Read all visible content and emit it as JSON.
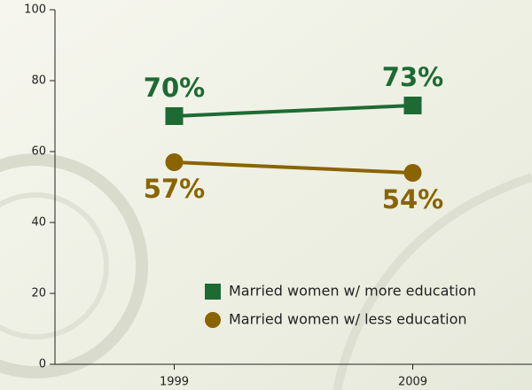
{
  "chart_data": {
    "type": "line",
    "x": [
      1999,
      2009
    ],
    "xlim": [
      1994,
      2014
    ],
    "xticks": [
      1999,
      2009
    ],
    "ylim": [
      0,
      100
    ],
    "yticks": [
      0,
      20,
      40,
      60,
      80,
      100
    ],
    "grid": false,
    "legend": "lower right",
    "series": [
      {
        "name": "Married women w/ more education",
        "color": "#1e6a34",
        "marker": "square",
        "values": [
          70,
          73
        ],
        "value_labels": [
          "70%",
          "73%"
        ],
        "label_side": "above"
      },
      {
        "name": "Married women w/ less education",
        "color": "#8a6400",
        "marker": "circle",
        "values": [
          57,
          54
        ],
        "value_labels": [
          "57%",
          "54%"
        ],
        "label_side": "below"
      }
    ]
  }
}
